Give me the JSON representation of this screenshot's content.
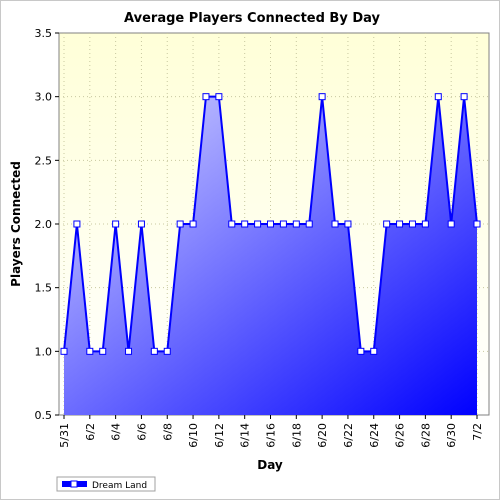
{
  "chart_data": {
    "type": "area",
    "title": "Average Players Connected By Day",
    "xlabel": "Day",
    "ylabel": "Players Connected",
    "ylim": [
      0.5,
      3.5
    ],
    "yticks": [
      "0.5",
      "1.0",
      "1.5",
      "2.0",
      "2.5",
      "3.0",
      "3.5"
    ],
    "x": [
      "5/31",
      "6/1",
      "6/2",
      "6/3",
      "6/4",
      "6/5",
      "6/6",
      "6/7",
      "6/8",
      "6/9",
      "6/10",
      "6/11",
      "6/12",
      "6/13",
      "6/14",
      "6/15",
      "6/16",
      "6/17",
      "6/18",
      "6/19",
      "6/20",
      "6/21",
      "6/22",
      "6/23",
      "6/24",
      "6/25",
      "6/26",
      "6/27",
      "6/28",
      "6/29",
      "6/30",
      "7/1",
      "7/2"
    ],
    "xtick_labels": [
      "5/31",
      "6/2",
      "6/4",
      "6/6",
      "6/8",
      "6/10",
      "6/12",
      "6/14",
      "6/16",
      "6/18",
      "6/20",
      "6/22",
      "6/24",
      "6/26",
      "6/28",
      "6/30",
      "7/2"
    ],
    "series": [
      {
        "name": "Dream Land",
        "values": [
          1,
          2,
          1,
          1,
          2,
          1,
          2,
          1,
          1,
          2,
          2,
          3,
          3,
          2,
          2,
          2,
          2,
          2,
          2,
          2,
          3,
          2,
          2,
          1,
          1,
          2,
          2,
          2,
          2,
          3,
          2,
          3,
          2
        ]
      }
    ],
    "grid": true,
    "legend": "bottom-left",
    "colors": {
      "plot_bg_top": "#ffffd8",
      "plot_bg_bottom": "#ffffff",
      "line": "#0000ff",
      "area_light": "#d8d8ff",
      "area_dark": "#0000ff",
      "marker_fill": "#ffffff",
      "grid": "#c8c8a0"
    }
  }
}
